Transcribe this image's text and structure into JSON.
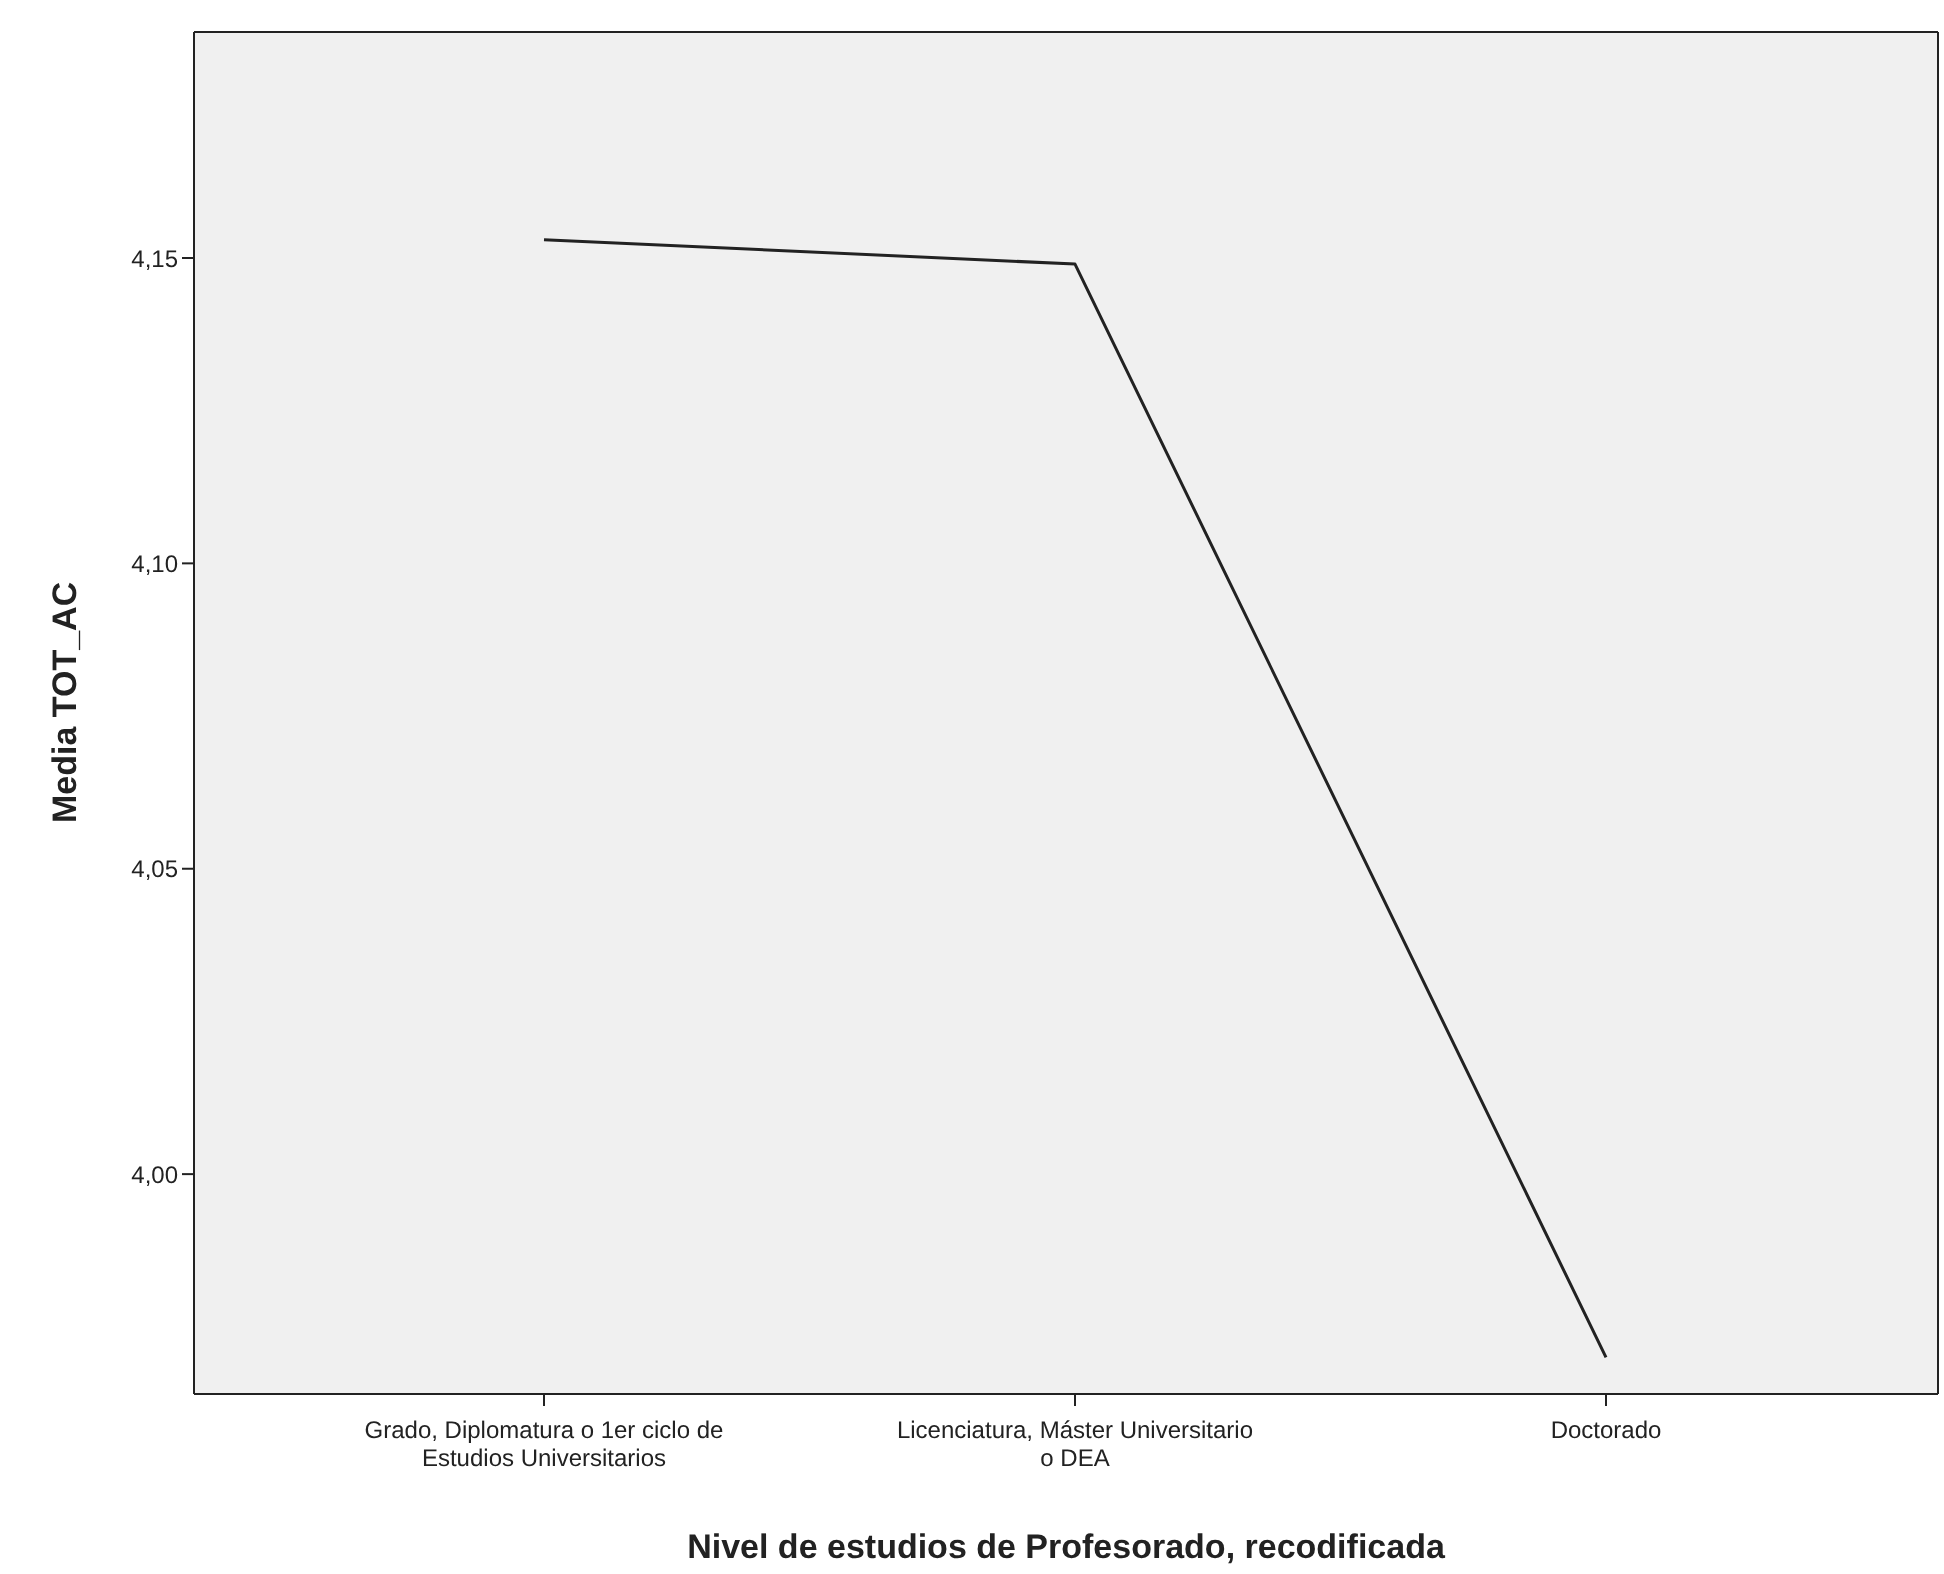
{
  "chart_data": {
    "type": "line",
    "xlabel": "Nivel de estudios de Profesorado, recodificada",
    "ylabel": "Media TOT_AC",
    "categories": [
      "Grado, Diplomatura o 1er ciclo de Estudios Universitarios",
      "Licenciatura, Máster Universitario o DEA",
      "Doctorado"
    ],
    "series": [
      {
        "color": "#222222",
        "values": [
          4.153,
          4.149,
          3.97
        ]
      }
    ],
    "ylim": [
      3.964,
      4.187
    ],
    "yticks": [
      {
        "value": 4.0,
        "label": "4,00"
      },
      {
        "value": 4.05,
        "label": "4,05"
      },
      {
        "value": 4.1,
        "label": "4,10"
      },
      {
        "value": 4.15,
        "label": "4,15"
      }
    ],
    "grid": false,
    "marker": "none",
    "line_style": "solid"
  }
}
